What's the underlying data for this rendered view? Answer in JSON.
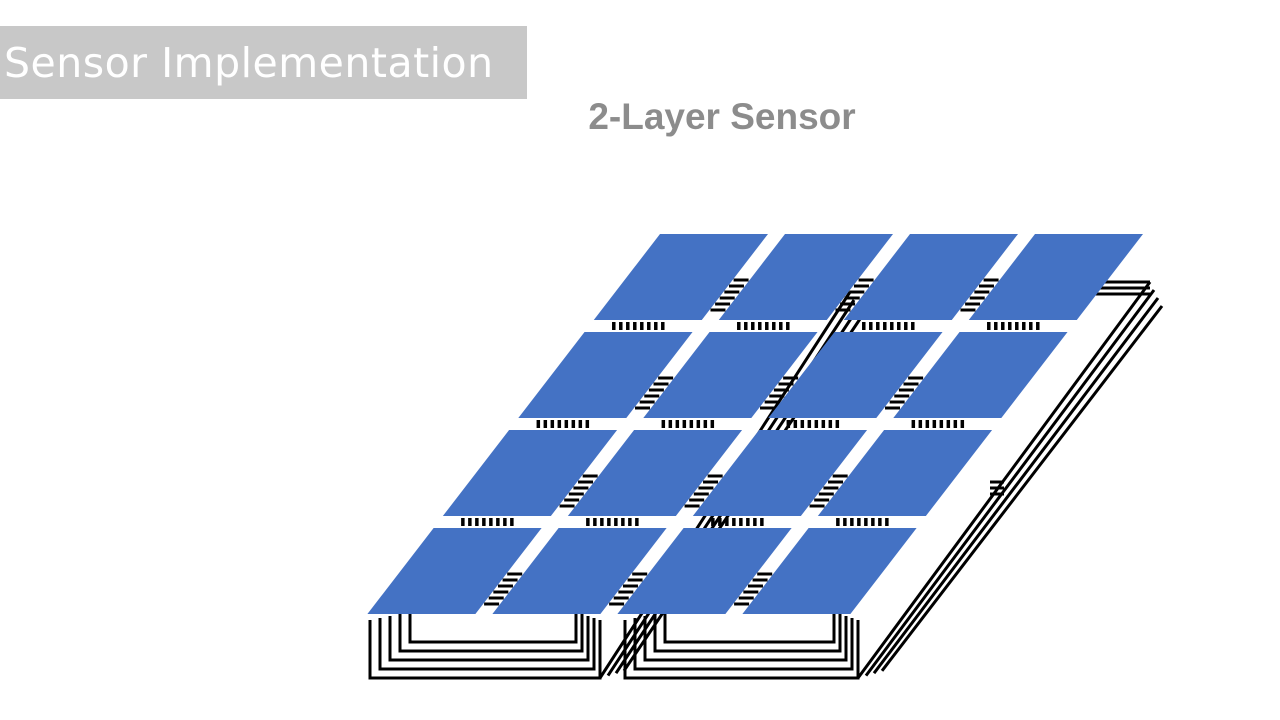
{
  "slide": {
    "title": "Sensor Implementation",
    "subtitle": "2-Layer Sensor"
  },
  "diagram": {
    "electrode_color": "#4472c4",
    "trace_color": "#000000",
    "banner_color": "#c8c8c8",
    "rows": 4,
    "columns": 4
  }
}
